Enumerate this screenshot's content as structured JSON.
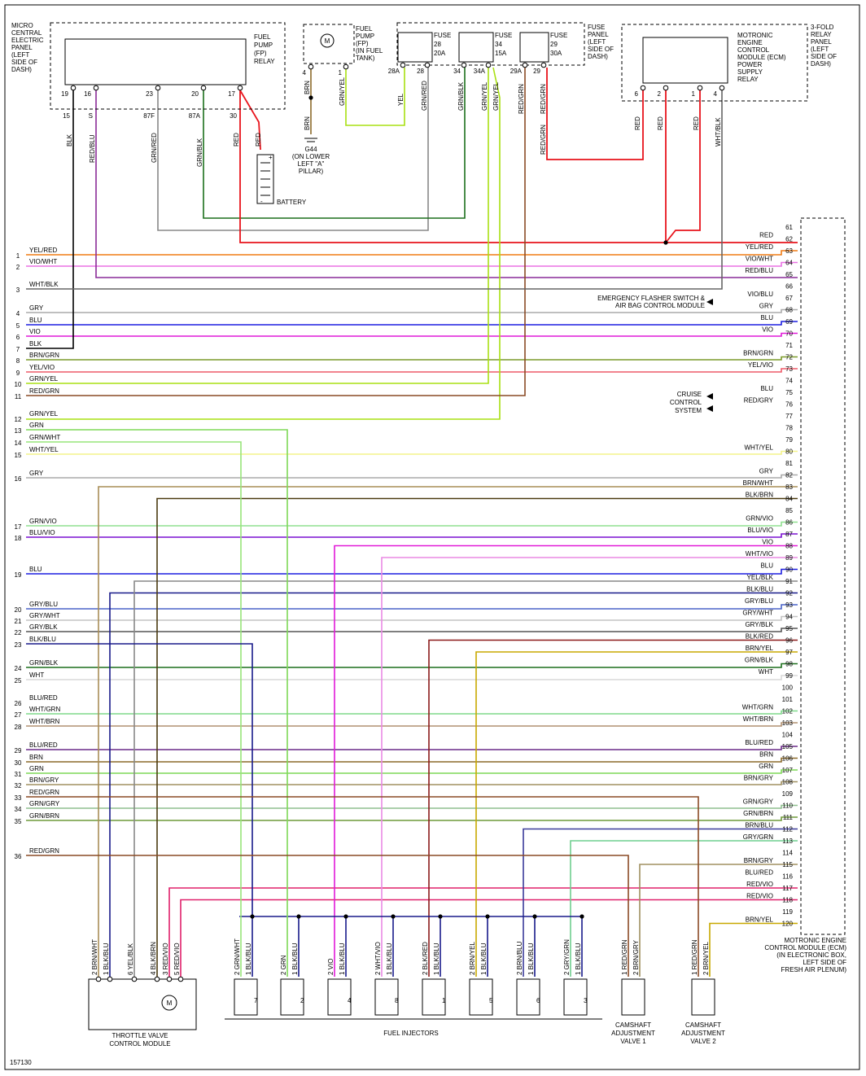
{
  "figure_id": "157130",
  "colors": {
    "RED": "#e8131b",
    "BLK": "#000000",
    "BLU": "#1d1ee0",
    "VIO": "#e11ad8",
    "GRY": "#aaaaaa",
    "GRN": "#7ed957",
    "WHT": "#d8d8d8",
    "YEL": "#e9e900",
    "BRN": "#8c6a2a",
    "YEL/RED": "#f07b14",
    "VIO/WHT": "#ea72e4",
    "RED/BLU": "#8a2b98",
    "WHT/BLK": "#666666",
    "BRN/GRN": "#7a9a2a",
    "YEL/VIO": "#ee5a68",
    "GRN/YEL": "#a8e012",
    "RED/GRN": "#8a4a25",
    "GRN/WHT": "#97e57a",
    "WHT/YEL": "#f4f48a",
    "BRN/WHT": "#a98d56",
    "GRN/VIO": "#8fe08f",
    "BLU/VIO": "#7a10d0",
    "GRY/BLU": "#4a64c8",
    "GRY/WHT": "#c4c4c4",
    "GRY/BLK": "#555555",
    "BLK/BLU": "#181a8a",
    "GRN/BLK": "#1c6f1c",
    "BLU/RED": "#6a2a88",
    "WHT/GRN": "#7ed98a",
    "WHT/BRN": "#b09070",
    "BRN/GRY": "#a09060",
    "GRN/GRY": "#8fbf8f",
    "GRN/BRN": "#6f9a3a",
    "BLK/BRN": "#4b3a10",
    "BLK/RED": "#8b1a1a",
    "BRN/YEL": "#c8a800",
    "BLU/GRN": "#2aa070",
    "GRY/GRN": "#6fcf8f",
    "WHT/VIO": "#ea8ae4",
    "RED/VIO": "#e0206a",
    "BRN/BLU": "#3a3a9a"
  },
  "components": {
    "fp_relay": "MICRO CENTRAL ELECTRIC PANEL (LEFT SIDE OF DASH)",
    "fp_relay_name": "FUEL PUMP (FP) RELAY",
    "fp_relay_pins": [
      "19",
      "16",
      "23",
      "20",
      "17"
    ],
    "fp_relay_terms": [
      "15",
      "S",
      "87F",
      "87A",
      "30"
    ],
    "fuel_pump": "FUEL PUMP (FP) (IN FUEL TANK)",
    "fuel_pump_pins": [
      "4",
      "1"
    ],
    "fuse_panel": "FUSE PANEL (LEFT SIDE OF DASH)",
    "fuses": [
      {
        "name": "FUSE 28 20A",
        "pins": [
          "28A",
          "28"
        ]
      },
      {
        "name": "FUSE 34 15A",
        "pins": [
          "34",
          "34A"
        ]
      },
      {
        "name": "FUSE 29 30A",
        "pins": [
          "29A",
          "29"
        ]
      }
    ],
    "relay_panel": "3-FOLD RELAY PANEL (LEFT SIDE OF DASH)",
    "ecm_relay": "MOTRONIC ENGINE CONTROL MODULE (ECM) POWER SUPPLY RELAY",
    "ecm_relay_pins": [
      "6",
      "2",
      "1",
      "4"
    ],
    "ground": "G44 (ON LOWER LEFT \"A\" PILLAR)",
    "battery": "BATTERY",
    "ecm": "MOTRONIC ENGINE CONTROL MODULE (ECM) (IN ELECTRONIC BOX, LEFT SIDE OF FRESH AIR PLENUM)",
    "flasher": "EMERGENCY FLASHER SWITCH & AIR BAG CONTROL MODULE",
    "cruise": "CRUISE CONTROL SYSTEM",
    "throttle": "THROTTLE VALVE CONTROL MODULE",
    "injectors": "FUEL INJECTORS",
    "injector_numbers": [
      "7",
      "2",
      "4",
      "8",
      "1",
      "5",
      "6",
      "3"
    ],
    "cam1": "CAMSHAFT ADJUSTMENT VALVE 1",
    "cam2": "CAMSHAFT ADJUSTMENT VALVE 2"
  },
  "left_wires": [
    {
      "n": "1",
      "c": "YEL/RED"
    },
    {
      "n": "2",
      "c": "VIO/WHT"
    },
    {
      "n": "3",
      "c": "WHT/BLK"
    },
    {
      "n": "4",
      "c": "GRY"
    },
    {
      "n": "5",
      "c": "BLU"
    },
    {
      "n": "6",
      "c": "VIO"
    },
    {
      "n": "7",
      "c": "BLK"
    },
    {
      "n": "8",
      "c": "BRN/GRN"
    },
    {
      "n": "9",
      "c": "YEL/VIO"
    },
    {
      "n": "10",
      "c": "GRN/YEL"
    },
    {
      "n": "11",
      "c": "RED/GRN"
    },
    {
      "n": "12",
      "c": "GRN/YEL"
    },
    {
      "n": "13",
      "c": "GRN"
    },
    {
      "n": "14",
      "c": "GRN/WHT"
    },
    {
      "n": "15",
      "c": "WHT/YEL"
    },
    {
      "n": "16",
      "c": "GRY"
    },
    {
      "n": "17",
      "c": "GRN/VIO"
    },
    {
      "n": "18",
      "c": "BLU/VIO"
    },
    {
      "n": "19",
      "c": "BLU"
    },
    {
      "n": "20",
      "c": "GRY/BLU"
    },
    {
      "n": "21",
      "c": "GRY/WHT"
    },
    {
      "n": "22",
      "c": "GRY/BLK"
    },
    {
      "n": "23",
      "c": "BLK/BLU"
    },
    {
      "n": "24",
      "c": "GRN/BLK"
    },
    {
      "n": "25",
      "c": "WHT"
    },
    {
      "n": "26",
      "c": "BLU/RED"
    },
    {
      "n": "27",
      "c": "WHT/GRN"
    },
    {
      "n": "28",
      "c": "WHT/BRN"
    },
    {
      "n": "29",
      "c": "BLU/RED"
    },
    {
      "n": "30",
      "c": "BRN"
    },
    {
      "n": "31",
      "c": "GRN"
    },
    {
      "n": "32",
      "c": "BRN/GRY"
    },
    {
      "n": "33",
      "c": "RED/GRN"
    },
    {
      "n": "34",
      "c": "GRN/GRY"
    },
    {
      "n": "35",
      "c": "GRN/BRN"
    },
    {
      "n": "36",
      "c": "RED/GRN"
    }
  ],
  "ecm_pins": [
    {
      "p": "61",
      "c": ""
    },
    {
      "p": "62",
      "c": "RED"
    },
    {
      "p": "63",
      "c": "YEL/RED"
    },
    {
      "p": "64",
      "c": "VIO/WHT"
    },
    {
      "p": "65",
      "c": "RED/BLU"
    },
    {
      "p": "66",
      "c": ""
    },
    {
      "p": "67",
      "c": "VIO/BLU"
    },
    {
      "p": "68",
      "c": "GRY"
    },
    {
      "p": "69",
      "c": "BLU"
    },
    {
      "p": "70",
      "c": "VIO"
    },
    {
      "p": "71",
      "c": ""
    },
    {
      "p": "72",
      "c": "BRN/GRN"
    },
    {
      "p": "73",
      "c": "YEL/VIO"
    },
    {
      "p": "74",
      "c": ""
    },
    {
      "p": "75",
      "c": "BLU"
    },
    {
      "p": "76",
      "c": "RED/GRY"
    },
    {
      "p": "77",
      "c": ""
    },
    {
      "p": "78",
      "c": ""
    },
    {
      "p": "79",
      "c": ""
    },
    {
      "p": "80",
      "c": "WHT/YEL"
    },
    {
      "p": "81",
      "c": ""
    },
    {
      "p": "82",
      "c": "GRY"
    },
    {
      "p": "83",
      "c": "BRN/WHT"
    },
    {
      "p": "84",
      "c": "BLK/BRN"
    },
    {
      "p": "85",
      "c": ""
    },
    {
      "p": "86",
      "c": "GRN/VIO"
    },
    {
      "p": "87",
      "c": "BLU/VIO"
    },
    {
      "p": "88",
      "c": "VIO"
    },
    {
      "p": "89",
      "c": "WHT/VIO"
    },
    {
      "p": "90",
      "c": "BLU"
    },
    {
      "p": "91",
      "c": "YEL/BLK"
    },
    {
      "p": "92",
      "c": "BLK/BLU"
    },
    {
      "p": "93",
      "c": "GRY/BLU"
    },
    {
      "p": "94",
      "c": "GRY/WHT"
    },
    {
      "p": "95",
      "c": "GRY/BLK"
    },
    {
      "p": "96",
      "c": "BLK/RED"
    },
    {
      "p": "97",
      "c": "BRN/YEL"
    },
    {
      "p": "98",
      "c": "GRN/BLK"
    },
    {
      "p": "99",
      "c": "WHT"
    },
    {
      "p": "100",
      "c": ""
    },
    {
      "p": "101",
      "c": ""
    },
    {
      "p": "102",
      "c": "WHT/GRN"
    },
    {
      "p": "103",
      "c": "WHT/BRN"
    },
    {
      "p": "104",
      "c": ""
    },
    {
      "p": "105",
      "c": "BLU/RED"
    },
    {
      "p": "106",
      "c": "BRN"
    },
    {
      "p": "107",
      "c": "GRN"
    },
    {
      "p": "108",
      "c": "BRN/GRY"
    },
    {
      "p": "109",
      "c": ""
    },
    {
      "p": "110",
      "c": "GRN/GRY"
    },
    {
      "p": "111",
      "c": "GRN/BRN"
    },
    {
      "p": "112",
      "c": "BRN/BLU"
    },
    {
      "p": "113",
      "c": "GRY/GRN"
    },
    {
      "p": "114",
      "c": ""
    },
    {
      "p": "115",
      "c": "BRN/GRY"
    },
    {
      "p": "116",
      "c": "BLU/RED"
    },
    {
      "p": "117",
      "c": "RED/VIO"
    },
    {
      "p": "118",
      "c": "RED/VIO"
    },
    {
      "p": "119",
      "c": ""
    },
    {
      "p": "120",
      "c": "BRN/YEL"
    }
  ],
  "top_wire_labels": {
    "fp": [
      "BLK",
      "RED/BLU",
      "GRN/RED",
      "GRN/BLK",
      "RED",
      "RED"
    ],
    "pump": [
      "BRN",
      "BRN",
      "GRN/YEL"
    ],
    "fuse": [
      "YEL",
      "GRN/RED",
      "GRN/BLK",
      "GRN/YEL",
      "GRN/YEL",
      "RED/GRN",
      "RED/GRN",
      "RED/GRN"
    ],
    "relay": [
      "RED",
      "RED",
      "RED",
      "WHT/BLK"
    ]
  },
  "throttle_pins": [
    {
      "pin": "2",
      "c": "BRN/WHT"
    },
    {
      "pin": "1",
      "c": "BLK/BLU"
    },
    {
      "pin": "6",
      "c": "YEL/BLK"
    },
    {
      "pin": "4",
      "c": "BLK/BRN"
    },
    {
      "pin": "3",
      "c": "RED/VIO"
    },
    {
      "pin": "5",
      "c": "RED/VIO"
    }
  ],
  "injector_pins": [
    {
      "a": "GRN/WHT",
      "b": "BLK/BLU"
    },
    {
      "a": "GRN",
      "b": "BLK/BLU"
    },
    {
      "a": "VIO",
      "b": "BLK/BLU"
    },
    {
      "a": "WHT/VIO",
      "b": "BLK/BLU"
    },
    {
      "a": "BLK/RED",
      "b": "BLK/BLU"
    },
    {
      "a": "BRN/YEL",
      "b": "BLK/BLU"
    },
    {
      "a": "BRN/BLU",
      "b": "BLK/BLU"
    },
    {
      "a": "GRY/GRN",
      "b": "BLK/BLU"
    }
  ],
  "cam_pins": [
    {
      "a": "RED/GRN",
      "b": "BRN/GRY"
    },
    {
      "a": "RED/GRN",
      "b": "BRN/YEL"
    }
  ]
}
